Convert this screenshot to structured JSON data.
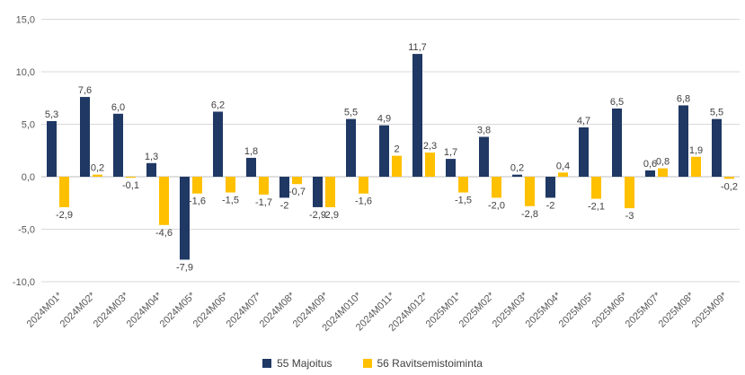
{
  "chart_data": {
    "type": "bar",
    "title": "",
    "xlabel": "",
    "ylabel": "",
    "ylim": [
      -10,
      15
    ],
    "grid": true,
    "legend_position": "bottom",
    "decimal_separator": ",",
    "categories": [
      "2024M01*",
      "2024M02*",
      "2024M03*",
      "2024M04*",
      "2024M05*",
      "2024M06*",
      "2024M07*",
      "2024M08*",
      "2024M09*",
      "2024M010*",
      "2024M011*",
      "2024M012*",
      "2025M01*",
      "2025M02*",
      "2025M03*",
      "2025M04*",
      "2025M05*",
      "2025M06*",
      "2025M07*",
      "2025M08*",
      "2025M09*"
    ],
    "series": [
      {
        "name": "55 Majoitus",
        "color": "#1F3864",
        "values": [
          5.3,
          7.6,
          6.0,
          1.3,
          -7.9,
          6.2,
          1.8,
          -2,
          -2.9,
          5.5,
          4.9,
          11.7,
          1.7,
          3.8,
          0.2,
          -2,
          4.7,
          6.5,
          0.6,
          6.8,
          5.5
        ],
        "labels": [
          "5,3",
          "7,6",
          "6,0",
          "1,3",
          "-7,9",
          "6,2",
          "1,8",
          "-2",
          "-2,9",
          "5,5",
          "4,9",
          "11,7",
          "1,7",
          "3,8",
          "0,2",
          "-2",
          "4,7",
          "6,5",
          "0,6",
          "6,8",
          "5,5"
        ]
      },
      {
        "name": "56 Ravitsemistoiminta",
        "color": "#FFC000",
        "values": [
          -2.9,
          0.2,
          -0.1,
          -4.6,
          -1.6,
          -1.5,
          -1.7,
          -0.7,
          -2.9,
          -1.6,
          2,
          2.3,
          -1.5,
          -2.0,
          -2.8,
          0.4,
          -2.1,
          -3,
          0.8,
          1.9,
          -0.2
        ],
        "labels": [
          "-2,9",
          "0,2",
          "-0,1",
          "-4,6",
          "-1,6",
          "-1,5",
          "-1,7",
          "-0,7",
          "-2,9",
          "-1,6",
          "2",
          "2,3",
          "-1,5",
          "-2,0",
          "-2,8",
          "0,4",
          "-2,1",
          "-3",
          "0,8",
          "1,9",
          "-0,2"
        ]
      }
    ],
    "y_ticks": [
      {
        "value": 15,
        "label": "15,0"
      },
      {
        "value": 10,
        "label": "10,0"
      },
      {
        "value": 5,
        "label": "5,0"
      },
      {
        "value": 0,
        "label": "0,0"
      },
      {
        "value": -5,
        "label": "-5,0"
      },
      {
        "value": -10,
        "label": "-10,0"
      }
    ]
  },
  "colors": {
    "background": "#FFFFFF",
    "grid_line": "#D9D9D9",
    "zero_line": "#BFBFBF",
    "tick_text": "#595959",
    "value_label_text": "#404040"
  }
}
